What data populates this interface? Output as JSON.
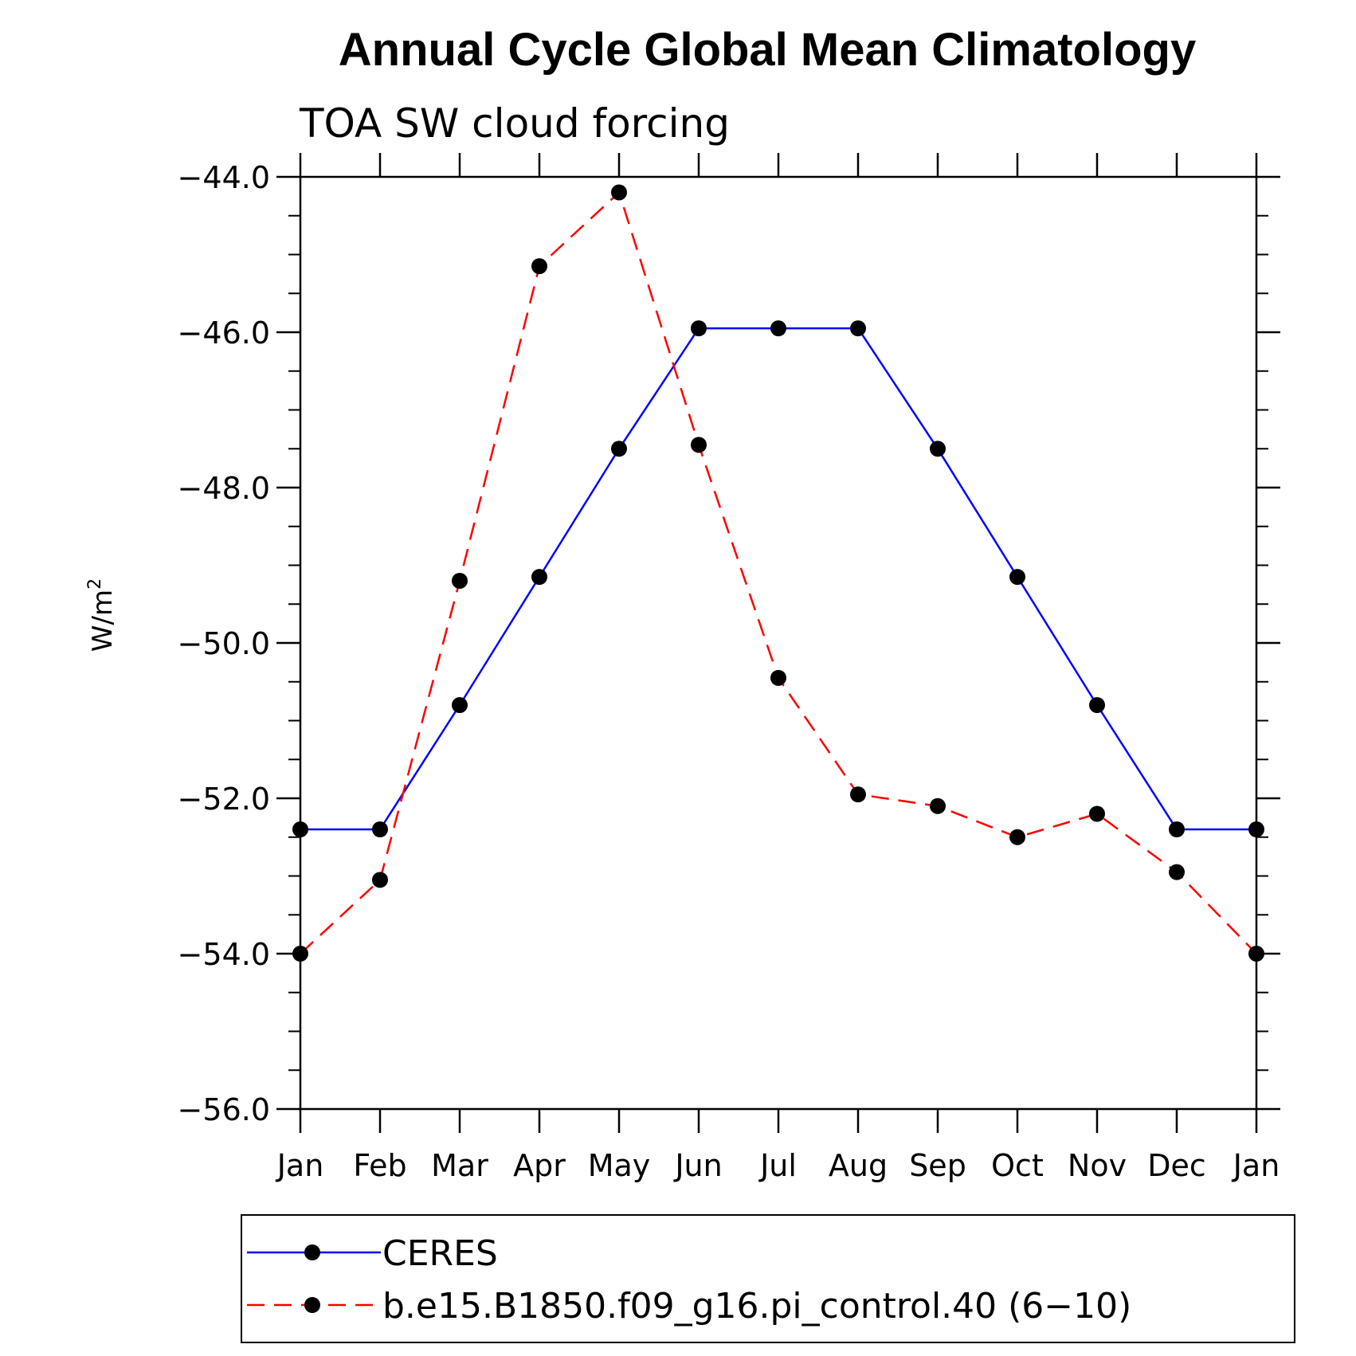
{
  "chart_data": {
    "type": "line",
    "title": "Annual Cycle Global Mean Climatology",
    "subtitle": "TOA SW cloud forcing",
    "ylabel": "W/m",
    "ylabel_superscript": "2",
    "xlabel": "",
    "categories": [
      "Jan",
      "Feb",
      "Mar",
      "Apr",
      "May",
      "Jun",
      "Jul",
      "Aug",
      "Sep",
      "Oct",
      "Nov",
      "Dec",
      "Jan"
    ],
    "ylim": [
      -56.0,
      -44.0
    ],
    "yticks": [
      "-44.0",
      "-46.0",
      "-48.0",
      "-50.0",
      "-52.0",
      "-54.0",
      "-56.0"
    ],
    "series": [
      {
        "name": "CERES",
        "color": "#0000ff",
        "dash": "solid",
        "values": [
          -52.4,
          -52.4,
          -50.8,
          -49.15,
          -47.5,
          -45.95,
          -45.95,
          -45.95,
          -47.5,
          -49.15,
          -50.8,
          -52.4,
          -52.4
        ]
      },
      {
        "name": "b.e15.B1850.f09_g16.pi_control.40 (6−10)",
        "color": "#ff0000",
        "dash": "dashed",
        "values": [
          -54.0,
          -53.05,
          -49.2,
          -45.15,
          -44.2,
          -47.45,
          -50.45,
          -51.95,
          -52.1,
          -52.5,
          -52.2,
          -52.95,
          -54.0
        ]
      }
    ],
    "marker_color": "#000000",
    "legend_position": "bottom"
  }
}
